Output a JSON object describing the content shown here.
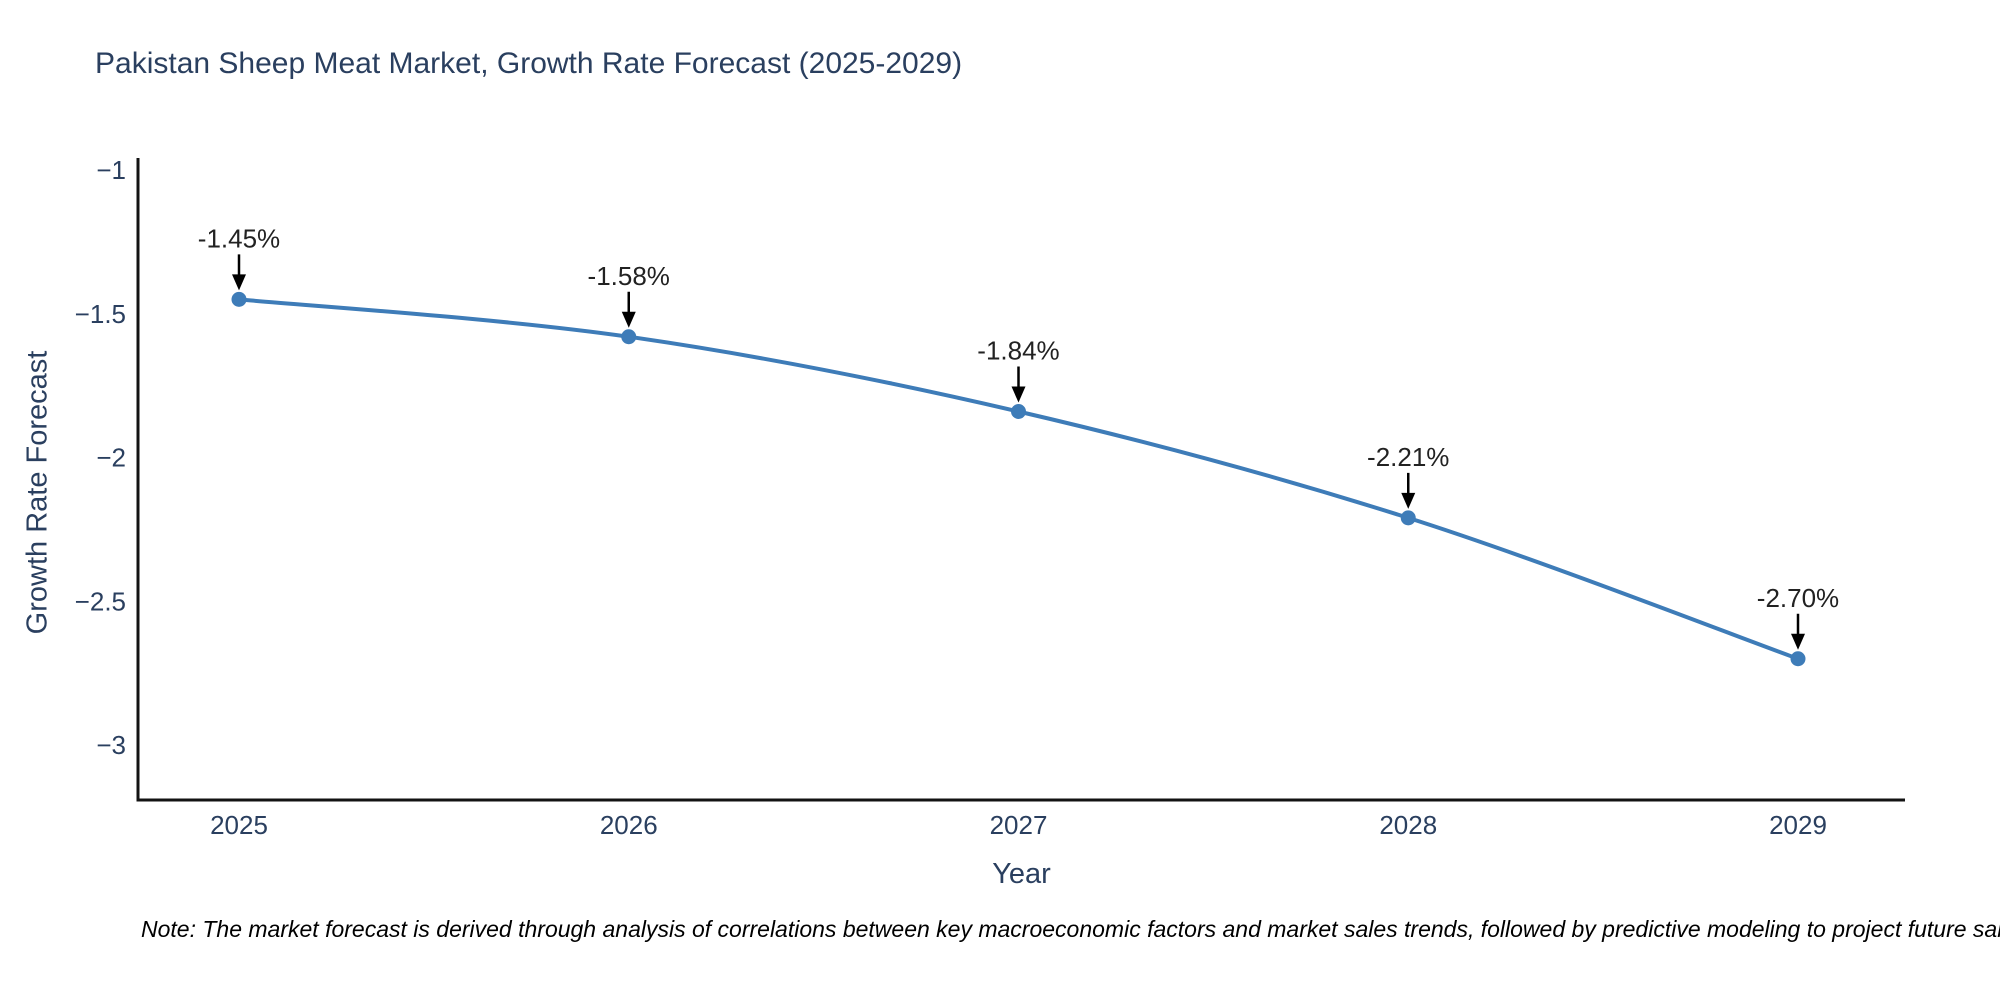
{
  "chart": {
    "title": "Pakistan Sheep Meat Market, Growth Rate Forecast (2025-2029)",
    "x_axis_title": "Year",
    "y_axis_title": "Growth Rate Forecast",
    "note": "Note: The market forecast is derived through analysis of correlations between key macroeconomic factors and market sales trends, followed by predictive modeling to project future sales"
  },
  "chart_data": {
    "type": "line",
    "title": "Pakistan Sheep Meat Market, Growth Rate Forecast (2025-2029)",
    "xlabel": "Year",
    "ylabel": "Growth Rate Forecast",
    "categories": [
      "2025",
      "2026",
      "2027",
      "2028",
      "2029"
    ],
    "series": [
      {
        "name": "Growth Rate Forecast",
        "values": [
          -1.45,
          -1.58,
          -1.84,
          -2.21,
          -2.7
        ],
        "point_labels": [
          "-1.45%",
          "-1.58%",
          "-1.84%",
          "-2.21%",
          "-2.70%"
        ],
        "line_shape": "spline",
        "line_color": "#3e7cb8",
        "marker_color": "#3e7cb8"
      }
    ],
    "yticks": [
      -1,
      -1.5,
      -2,
      -2.5,
      -3
    ],
    "ytick_labels": [
      "−1",
      "−1.5",
      "−2",
      "−2.5",
      "−3"
    ],
    "ylim": [
      -3.19,
      -0.96
    ],
    "grid": false,
    "legend_position": "none",
    "annotations_arrow_color": "#000000",
    "axis_line_color": "#131313",
    "note": "Note: The market forecast is derived through analysis of correlations between key macroeconomic factors and market sales trends, followed by predictive modeling to project future sales"
  }
}
